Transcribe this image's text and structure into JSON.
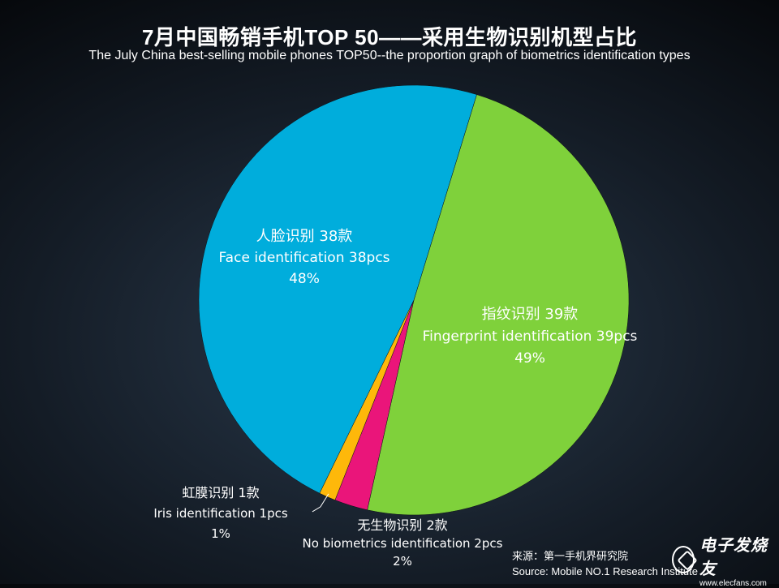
{
  "header": {
    "title": "7月中国畅销手机TOP 50——采用生物识别机型占比",
    "subtitle": "The July China best-selling mobile phones TOP50--the proportion graph of biometrics identification types"
  },
  "source": {
    "line1": "来源：第一手机界研究院",
    "line2": "Source: Mobile NO.1 Research Institute"
  },
  "watermark": {
    "cn": "电子发烧友",
    "url": "www.elecfans.com"
  },
  "chart_data": {
    "type": "pie",
    "title": "7月中国畅销手机TOP 50——采用生物识别机型占比",
    "subtitle": "The July China best-selling mobile phones TOP50--the proportion graph of biometrics identification types",
    "slices": [
      {
        "label_cn": "指纹识别 39款",
        "label_en": "Fingerprint identification 39pcs",
        "value": 39,
        "percent": "49%",
        "color": "#7fd13b"
      },
      {
        "label_cn": "无生物识别 2款",
        "label_en": "No biometrics identification 2pcs",
        "value": 2,
        "percent": "2%",
        "color": "#ea157a"
      },
      {
        "label_cn": "虹膜识别 1款",
        "label_en": "Iris identification 1pcs",
        "value": 1,
        "percent": "1%",
        "color": "#feb80a"
      },
      {
        "label_cn": "人脸识别 38款",
        "label_en": "Face identification 38pcs",
        "value": 38,
        "percent": "48%",
        "color": "#00addc"
      }
    ]
  }
}
